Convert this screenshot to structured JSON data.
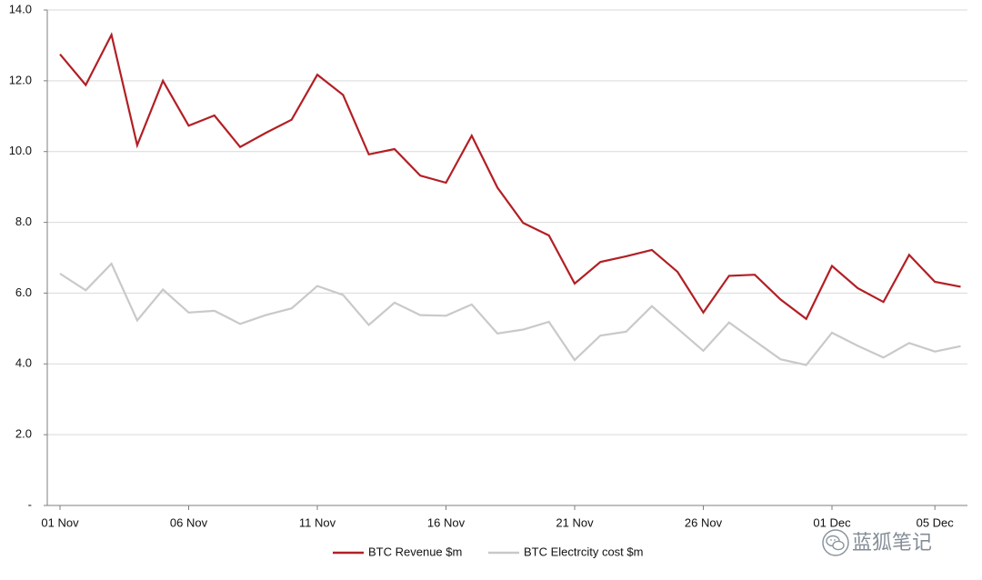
{
  "chart_data": {
    "type": "line",
    "title": "",
    "xlabel": "",
    "ylabel": "",
    "ylim": [
      0,
      14
    ],
    "yticks": [
      {
        "value": 0,
        "label": "-"
      },
      {
        "value": 2,
        "label": "2.0"
      },
      {
        "value": 4,
        "label": "4.0"
      },
      {
        "value": 6,
        "label": "6.0"
      },
      {
        "value": 8,
        "label": "8.0"
      },
      {
        "value": 10,
        "label": "10.0"
      },
      {
        "value": 12,
        "label": "12.0"
      },
      {
        "value": 14,
        "label": "14.0"
      }
    ],
    "xticks": [
      {
        "day": 1,
        "label": "01 Nov"
      },
      {
        "day": 6,
        "label": "06 Nov"
      },
      {
        "day": 11,
        "label": "11 Nov"
      },
      {
        "day": 16,
        "label": "16 Nov"
      },
      {
        "day": 21,
        "label": "21 Nov"
      },
      {
        "day": 26,
        "label": "26 Nov"
      },
      {
        "day": 31,
        "label": "01 Dec"
      },
      {
        "day": 35,
        "label": "05 Dec"
      }
    ],
    "x": [
      "01 Nov",
      "02 Nov",
      "03 Nov",
      "04 Nov",
      "05 Nov",
      "06 Nov",
      "07 Nov",
      "08 Nov",
      "09 Nov",
      "10 Nov",
      "11 Nov",
      "12 Nov",
      "13 Nov",
      "14 Nov",
      "15 Nov",
      "16 Nov",
      "17 Nov",
      "18 Nov",
      "19 Nov",
      "20 Nov",
      "21 Nov",
      "22 Nov",
      "23 Nov",
      "24 Nov",
      "25 Nov",
      "26 Nov",
      "27 Nov",
      "28 Nov",
      "29 Nov",
      "30 Nov",
      "01 Dec",
      "02 Dec",
      "03 Dec",
      "04 Dec",
      "05 Dec",
      "06 Dec"
    ],
    "grid": true,
    "legend_position": "bottom-center",
    "series": [
      {
        "name": "BTC Revenue $m",
        "color": "#b21f24",
        "values": [
          12.75,
          11.88,
          13.3,
          10.18,
          12.0,
          10.73,
          11.02,
          10.13,
          10.53,
          10.9,
          12.17,
          11.6,
          9.92,
          10.07,
          9.32,
          9.12,
          10.45,
          8.98,
          7.98,
          7.63,
          6.27,
          6.88,
          7.04,
          7.22,
          6.6,
          5.45,
          6.49,
          6.52,
          5.82,
          5.27,
          6.77,
          6.14,
          5.75,
          7.08,
          6.32,
          6.18
        ]
      },
      {
        "name": "BTC Electrcity cost $m",
        "color": "#c9c9c9",
        "values": [
          6.55,
          6.08,
          6.83,
          5.23,
          6.1,
          5.45,
          5.5,
          5.13,
          5.38,
          5.57,
          6.2,
          5.95,
          5.1,
          5.73,
          5.38,
          5.36,
          5.68,
          4.86,
          4.97,
          5.19,
          4.11,
          4.8,
          4.91,
          5.63,
          5.0,
          4.37,
          5.17,
          4.65,
          4.13,
          3.97,
          4.88,
          4.51,
          4.18,
          4.59,
          4.35,
          4.5
        ]
      }
    ]
  },
  "watermark": {
    "text": "蓝狐笔记",
    "icon": "wechat-logo-icon"
  }
}
